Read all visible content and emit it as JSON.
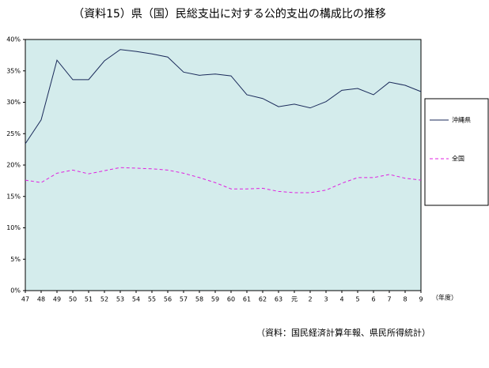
{
  "chart_data": {
    "type": "line",
    "title": "（資料15）県（国）民総支出に対する公的支出の構成比の推移",
    "x_label": "（年度）",
    "note": "（資料：国民経済計算年報、県民所得統計）",
    "categories": [
      "47",
      "48",
      "49",
      "50",
      "51",
      "52",
      "53",
      "54",
      "55",
      "56",
      "57",
      "58",
      "59",
      "60",
      "61",
      "62",
      "63",
      "元",
      "2",
      "3",
      "4",
      "5",
      "6",
      "7",
      "8",
      "9"
    ],
    "series": [
      {
        "name": "沖縄県",
        "color": "#1a2a5a",
        "dash": false,
        "values": [
          23.4,
          27.2,
          36.7,
          33.6,
          33.6,
          36.6,
          38.4,
          38.1,
          37.7,
          37.2,
          34.8,
          34.3,
          34.5,
          34.2,
          31.2,
          30.6,
          29.3,
          29.7,
          29.1,
          30.1,
          31.9,
          32.2,
          31.2,
          33.2,
          32.7,
          31.7
        ]
      },
      {
        "name": "全国",
        "color": "#e020e0",
        "dash": true,
        "values": [
          17.6,
          17.2,
          18.7,
          19.2,
          18.6,
          19.1,
          19.6,
          19.5,
          19.4,
          19.2,
          18.7,
          18.0,
          17.2,
          16.2,
          16.2,
          16.3,
          15.8,
          15.6,
          15.6,
          16.0,
          17.1,
          18.0,
          18.0,
          18.5,
          17.9,
          17.6
        ]
      }
    ],
    "ylim": [
      0,
      40
    ],
    "yticks": [
      {
        "value": 0,
        "label": "0%"
      },
      {
        "value": 5,
        "label": "5%"
      },
      {
        "value": 10,
        "label": "10%"
      },
      {
        "value": 15,
        "label": "15%"
      },
      {
        "value": 20,
        "label": "20%"
      },
      {
        "value": 25,
        "label": "25%"
      },
      {
        "value": 30,
        "label": "30%"
      },
      {
        "value": 35,
        "label": "35%"
      },
      {
        "value": 40,
        "label": "40%"
      }
    ],
    "grid": false,
    "legend": "right",
    "plot_background": "#d4ecec"
  }
}
